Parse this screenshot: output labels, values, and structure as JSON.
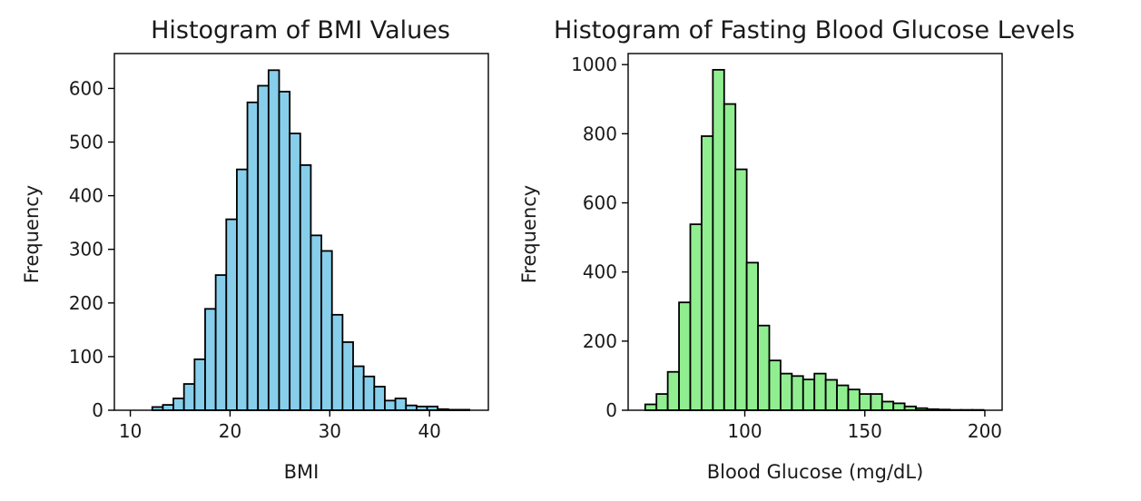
{
  "chart_data": [
    {
      "type": "bar",
      "title": "Histogram of BMI Values",
      "xlabel": "BMI",
      "ylabel": "Frequency",
      "color": "#87ceeb",
      "edge_color": "#000000",
      "xlim": [
        8.4,
        45.9
      ],
      "ylim": [
        0,
        665
      ],
      "x_ticks": [
        10,
        20,
        30,
        40
      ],
      "y_ticks": [
        0,
        100,
        200,
        300,
        400,
        500,
        600
      ],
      "bin_start": 12.2,
      "bin_width": 1.06,
      "values": [
        6,
        10,
        22,
        49,
        95,
        189,
        252,
        356,
        449,
        574,
        605,
        634,
        594,
        516,
        457,
        326,
        297,
        178,
        127,
        82,
        63,
        44,
        18,
        22,
        9,
        7,
        7,
        2,
        1,
        1
      ]
    },
    {
      "type": "bar",
      "title": "Histogram of Fasting Blood Glucose Levels",
      "xlabel": "Blood Glucose (mg/dL)",
      "ylabel": "Frequency",
      "color": "#90ee90",
      "edge_color": "#000000",
      "xlim": [
        51.4,
        207.2
      ],
      "ylim": [
        0,
        1032
      ],
      "x_ticks": [
        100,
        150,
        200
      ],
      "y_ticks": [
        0,
        200,
        400,
        600,
        800,
        1000
      ],
      "bin_start": 58.5,
      "bin_width": 4.7,
      "values": [
        17,
        47,
        111,
        312,
        538,
        793,
        985,
        886,
        697,
        427,
        245,
        144,
        106,
        99,
        89,
        106,
        88,
        72,
        60,
        47,
        47,
        25,
        20,
        11,
        6,
        3,
        2,
        1,
        1,
        1
      ]
    }
  ]
}
